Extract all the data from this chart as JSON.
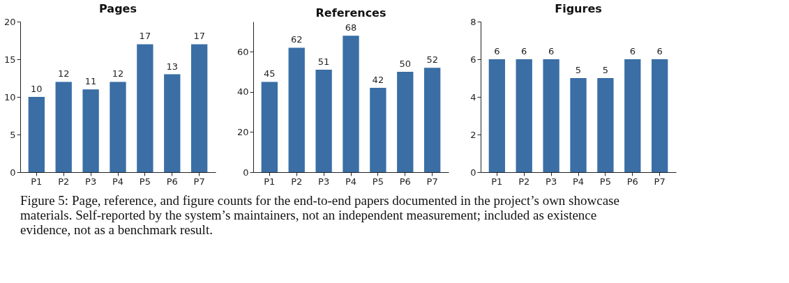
{
  "chart_data": [
    {
      "type": "bar",
      "title": "Pages",
      "categories": [
        "P1",
        "P2",
        "P3",
        "P4",
        "P5",
        "P6",
        "P7"
      ],
      "values": [
        10,
        12,
        11,
        12,
        17,
        13,
        17
      ],
      "color": "#3a6ea5",
      "ylim": [
        0,
        20
      ],
      "yticks": [
        0,
        5,
        10,
        15,
        20
      ],
      "data_labels": true,
      "grid": false,
      "annotations": [
        "Figure 5: Page, reference, and figure counts for the end-to-end papers documented in the project’s own showcase materials. Self-reported by the system’s maintainers, not an independent measurement; included as existence evidence, not as a benchmark result."
      ]
    },
    {
      "type": "bar",
      "title": "References",
      "categories": [
        "P1",
        "P2",
        "P3",
        "P4",
        "P5",
        "P6",
        "P7"
      ],
      "values": [
        45,
        62,
        51,
        68,
        42,
        50,
        52
      ],
      "color": "#3a6ea5",
      "ylim": [
        0,
        75
      ],
      "yticks": [
        0,
        20,
        40,
        60
      ],
      "data_labels": true,
      "grid": false
    },
    {
      "type": "bar",
      "title": "Figures",
      "categories": [
        "P1",
        "P2",
        "P3",
        "P4",
        "P5",
        "P6",
        "P7"
      ],
      "values": [
        6,
        6,
        6,
        5,
        5,
        6,
        6
      ],
      "color": "#3a6ea5",
      "ylim": [
        0,
        8
      ],
      "yticks": [
        0,
        2,
        4,
        6,
        8
      ],
      "data_labels": true,
      "grid": false
    }
  ]
}
